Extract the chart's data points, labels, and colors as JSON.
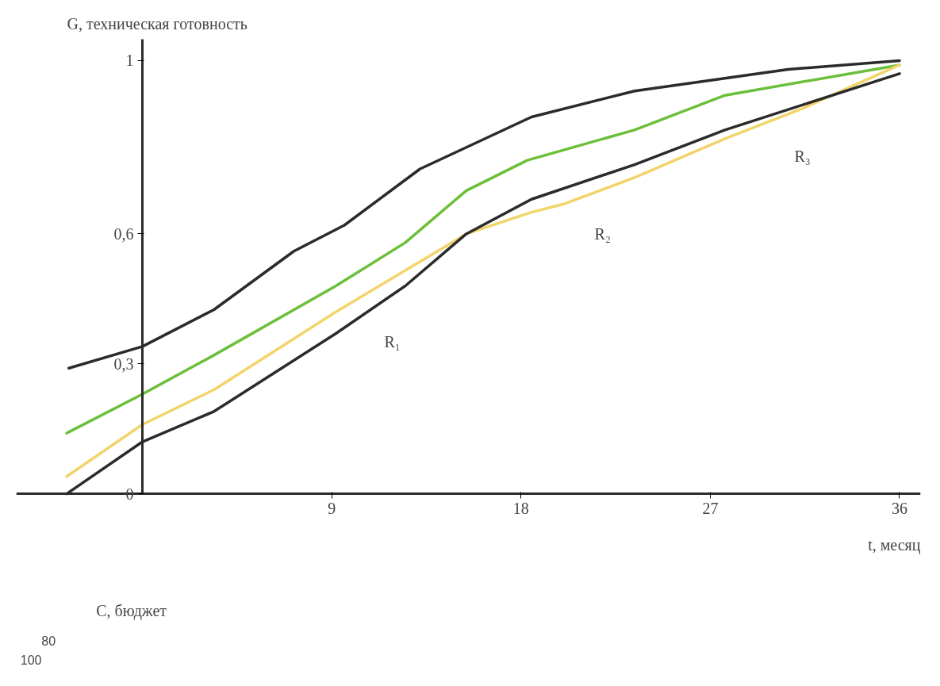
{
  "chart_data": {
    "type": "line",
    "xlabel": "t, месяц",
    "ylabel": "G, техническая готовность",
    "xlim": [
      -6,
      37
    ],
    "ylim": [
      0,
      1.05
    ],
    "xticks": [
      9,
      18,
      27,
      36
    ],
    "yticks": [
      0,
      {
        "value": 0.3,
        "label": "0,3"
      },
      {
        "value": 0.6,
        "label": "0,6"
      },
      1
    ],
    "grid": false,
    "marker": "none",
    "line_style": "solid",
    "series": [
      {
        "color": "#2b2b2b",
        "x": [
          -3.5,
          0,
          3.4,
          7.2,
          9.6,
          13.2,
          18.5,
          23.4,
          30.7,
          36
        ],
        "values": [
          0.29,
          0.34,
          0.425,
          0.56,
          0.62,
          0.75,
          0.87,
          0.93,
          0.98,
          1.0
        ]
      },
      {
        "color": "#6cbf3a",
        "x": [
          -3.6,
          0,
          3.4,
          9.2,
          12.5,
          15.4,
          18.3,
          23.4,
          27.7,
          36
        ],
        "values": [
          0.14,
          0.23,
          0.32,
          0.48,
          0.58,
          0.7,
          0.77,
          0.84,
          0.92,
          0.99
        ]
      },
      {
        "color": "#f2d46b",
        "x": [
          -3.6,
          0,
          3.4,
          9.2,
          15.4,
          18.5,
          20.1,
          23.4,
          27.7,
          31.4,
          36
        ],
        "values": [
          0.04,
          0.16,
          0.24,
          0.42,
          0.6,
          0.65,
          0.67,
          0.73,
          0.82,
          0.89,
          0.99
        ]
      },
      {
        "color": "#2b2b2b",
        "x": [
          -3.6,
          0,
          3.4,
          9.2,
          12.5,
          15.4,
          18.5,
          23.4,
          27.7,
          36
        ],
        "values": [
          0.0,
          0.12,
          0.19,
          0.37,
          0.48,
          0.6,
          0.68,
          0.76,
          0.84,
          0.97
        ]
      }
    ],
    "annotations": [
      "R₁",
      "R₂",
      "R₃",
      "C, бюджет",
      "80",
      "100"
    ]
  }
}
